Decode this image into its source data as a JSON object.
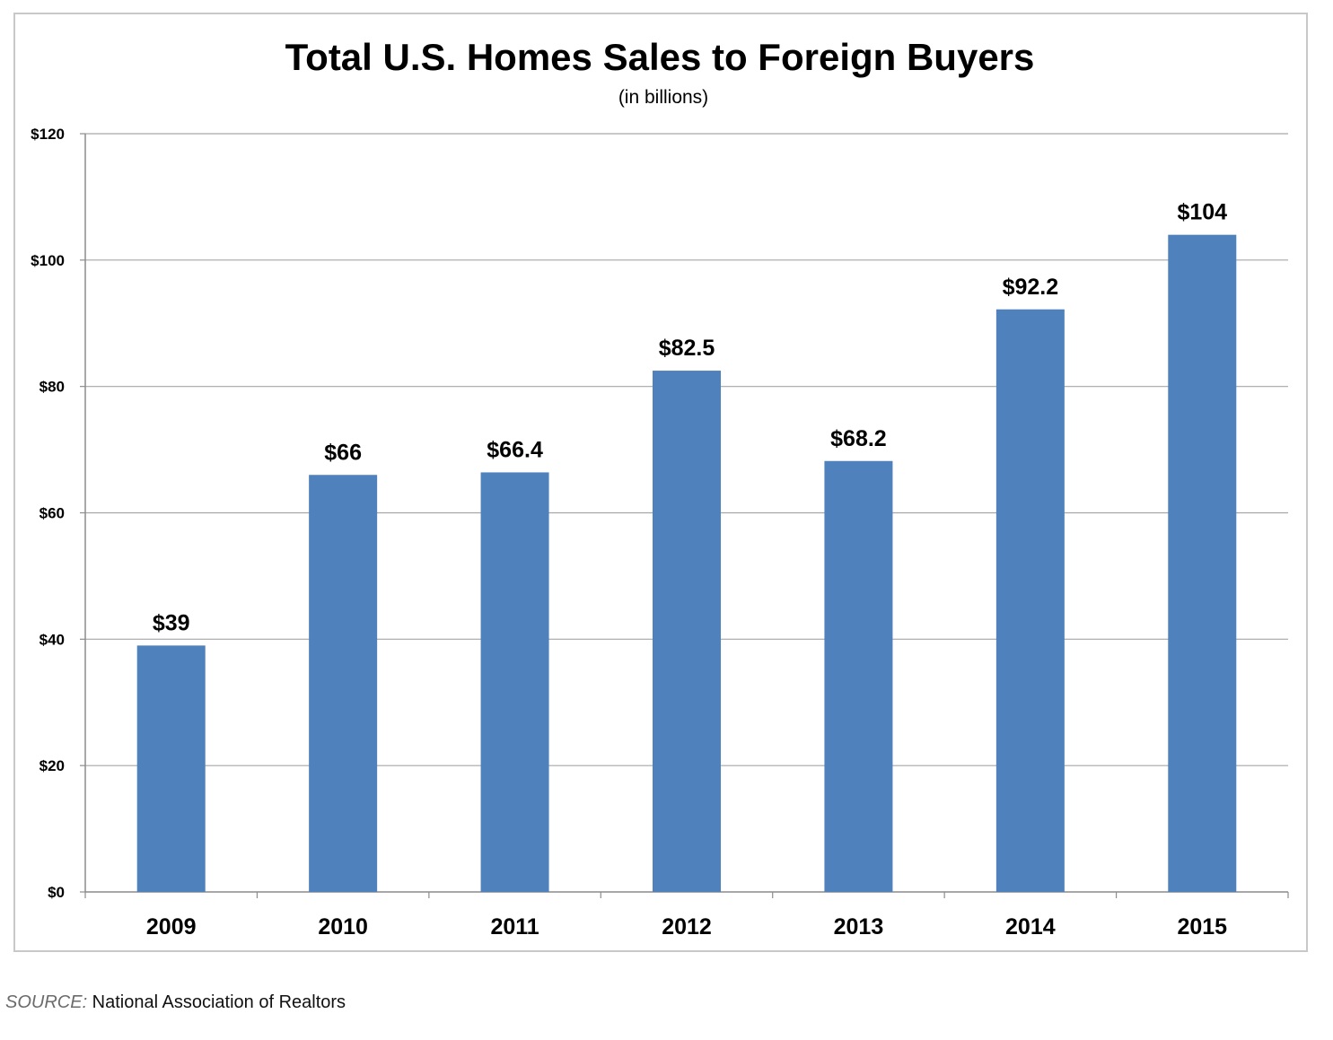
{
  "chart_data": {
    "type": "bar",
    "title": "Total U.S. Homes Sales to Foreign Buyers",
    "subtitle": "(in billions)",
    "xlabel": "",
    "ylabel": "",
    "categories": [
      "2009",
      "2010",
      "2011",
      "2012",
      "2013",
      "2014",
      "2015"
    ],
    "values": [
      39,
      66,
      66.4,
      82.5,
      68.2,
      92.2,
      104
    ],
    "data_labels": [
      "$39",
      "$66",
      "$66.4",
      "$82.5",
      "$68.2",
      "$92.2",
      "$104"
    ],
    "ylim": [
      0,
      120
    ],
    "y_ticks": [
      0,
      20,
      40,
      60,
      80,
      100,
      120
    ],
    "y_tick_labels": [
      "$0",
      "$20",
      "$40",
      "$60",
      "$80",
      "$100",
      "$120"
    ],
    "grid": true,
    "legend": "none",
    "bar_color": "#4f81bd"
  },
  "source": {
    "prefix": "SOURCE:",
    "text": " National Association of Realtors"
  }
}
